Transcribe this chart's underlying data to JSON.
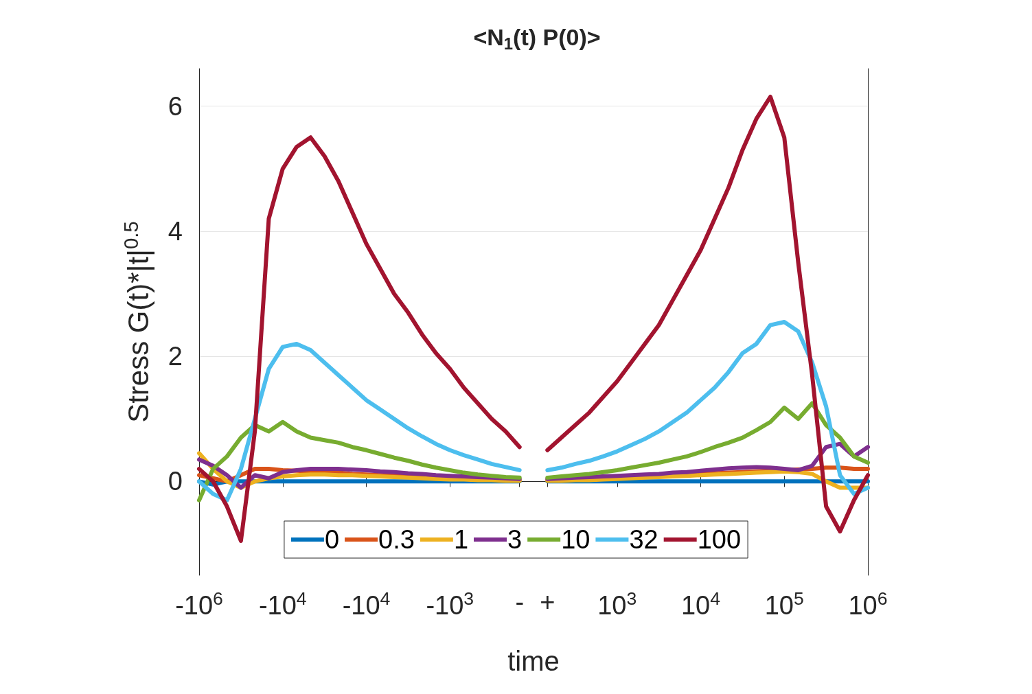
{
  "chart_data": {
    "type": "line",
    "title": "<N$_{1}$(t) P(0)>",
    "xlabel": "time",
    "ylabel": "Stress G(t)*|t|$^{0.5}$",
    "categories": [
      "-10$^{6}$",
      null,
      null,
      null,
      null,
      null,
      "-10$^{4}$",
      null,
      null,
      null,
      null,
      null,
      "-10$^{4}$",
      null,
      null,
      null,
      null,
      null,
      "-10$^{3}$",
      null,
      null,
      null,
      null,
      "-",
      null,
      "+",
      null,
      null,
      null,
      null,
      "10$^{3}$",
      null,
      null,
      null,
      null,
      null,
      "10$^{4}$",
      null,
      null,
      null,
      null,
      null,
      "10$^{5}$",
      null,
      null,
      null,
      null,
      null,
      "10$^{6}$"
    ],
    "series": [
      {
        "name": "0",
        "color": "#0072bd",
        "values": [
          0,
          -0.05,
          0,
          0,
          0,
          0,
          0,
          0,
          0,
          0,
          0,
          0,
          0,
          0,
          0,
          0,
          0,
          0,
          0,
          0,
          0,
          0,
          0,
          0,
          null,
          0,
          0,
          0,
          0,
          0,
          0,
          0,
          0,
          0,
          0,
          0,
          0,
          0,
          0,
          0,
          0,
          0,
          0,
          0,
          0,
          0,
          0,
          0,
          0
        ]
      },
      {
        "name": "0.3",
        "color": "#d95319",
        "values": [
          0.1,
          0.05,
          0,
          0.1,
          0.2,
          0.2,
          0.18,
          0.17,
          0.16,
          0.15,
          0.14,
          0.12,
          0.11,
          0.1,
          0.09,
          0.08,
          0.07,
          0.06,
          0.05,
          0.04,
          0.04,
          0.03,
          0.03,
          0.02,
          null,
          0.02,
          0.03,
          0.03,
          0.04,
          0.05,
          0.06,
          0.07,
          0.08,
          0.09,
          0.1,
          0.11,
          0.12,
          0.13,
          0.14,
          0.15,
          0.16,
          0.17,
          0.18,
          0.19,
          0.2,
          0.22,
          0.22,
          0.2,
          0.2
        ]
      },
      {
        "name": "1",
        "color": "#edb120",
        "values": [
          0.45,
          0.2,
          0,
          -0.1,
          0,
          0.05,
          0.08,
          0.1,
          0.11,
          0.11,
          0.1,
          0.1,
          0.09,
          0.08,
          0.07,
          0.06,
          0.05,
          0.04,
          0.03,
          0.03,
          0.02,
          0.02,
          0.01,
          0.01,
          null,
          0.01,
          0.01,
          0.02,
          0.02,
          0.03,
          0.04,
          0.05,
          0.06,
          0.07,
          0.08,
          0.09,
          0.1,
          0.11,
          0.12,
          0.13,
          0.14,
          0.15,
          0.16,
          0.15,
          0.12,
          0,
          -0.1,
          -0.1,
          -0.1
        ]
      },
      {
        "name": "3",
        "color": "#7e2f8e",
        "values": [
          0.35,
          0.25,
          0.1,
          -0.1,
          0.1,
          0.05,
          0.15,
          0.18,
          0.2,
          0.2,
          0.2,
          0.19,
          0.18,
          0.16,
          0.15,
          0.13,
          0.12,
          0.1,
          0.09,
          0.08,
          0.07,
          0.06,
          0.05,
          0.04,
          null,
          0.04,
          0.05,
          0.06,
          0.07,
          0.08,
          0.09,
          0.1,
          0.11,
          0.12,
          0.14,
          0.15,
          0.17,
          0.19,
          0.21,
          0.22,
          0.23,
          0.22,
          0.2,
          0.18,
          0.25,
          0.55,
          0.6,
          0.4,
          0.55
        ]
      },
      {
        "name": "10",
        "color": "#77ac30",
        "values": [
          -0.3,
          0.2,
          0.4,
          0.7,
          0.9,
          0.8,
          0.95,
          0.8,
          0.7,
          0.66,
          0.62,
          0.55,
          0.5,
          0.44,
          0.38,
          0.33,
          0.27,
          0.22,
          0.18,
          0.14,
          0.11,
          0.09,
          0.07,
          0.06,
          null,
          0.06,
          0.08,
          0.1,
          0.12,
          0.15,
          0.18,
          0.22,
          0.26,
          0.3,
          0.35,
          0.4,
          0.47,
          0.55,
          0.62,
          0.7,
          0.82,
          0.95,
          1.18,
          1,
          1.25,
          0.9,
          0.7,
          0.4,
          0.3
        ]
      },
      {
        "name": "32",
        "color": "#4dbeee",
        "values": [
          0,
          -0.2,
          -0.3,
          0.2,
          1,
          1.8,
          2.15,
          2.2,
          2.1,
          1.9,
          1.7,
          1.5,
          1.3,
          1.15,
          1,
          0.85,
          0.72,
          0.6,
          0.5,
          0.42,
          0.35,
          0.28,
          0.23,
          0.18,
          null,
          0.18,
          0.22,
          0.28,
          0.33,
          0.4,
          0.48,
          0.58,
          0.68,
          0.8,
          0.95,
          1.1,
          1.3,
          1.5,
          1.75,
          2.05,
          2.2,
          2.5,
          2.55,
          2.4,
          1.9,
          1.2,
          0.1,
          -0.2,
          -0.1
        ]
      },
      {
        "name": "100",
        "color": "#a2142f",
        "values": [
          0.2,
          0,
          -0.4,
          -0.95,
          0.8,
          4.2,
          5,
          5.35,
          5.5,
          5.2,
          4.8,
          4.3,
          3.8,
          3.4,
          3,
          2.7,
          2.35,
          2.05,
          1.8,
          1.5,
          1.25,
          1,
          0.8,
          0.55,
          null,
          0.5,
          0.7,
          0.9,
          1.1,
          1.35,
          1.6,
          1.9,
          2.2,
          2.5,
          2.9,
          3.3,
          3.7,
          4.2,
          4.7,
          5.3,
          5.8,
          6.15,
          5.5,
          3.5,
          1.7,
          -0.4,
          -0.8,
          -0.3,
          0.1
        ]
      }
    ],
    "ylim": [
      -1.5,
      6.6
    ],
    "yticks": [
      0,
      2,
      4,
      6
    ],
    "grid": "y",
    "legend": "bottom",
    "marker": "none",
    "line_style": "solid"
  }
}
